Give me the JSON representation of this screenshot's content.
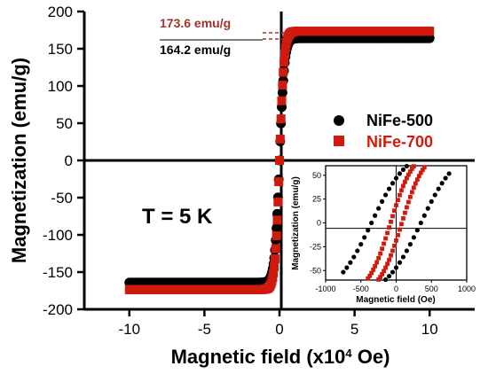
{
  "colors": {
    "nife500": "#000000",
    "nife700": "#d11a0e",
    "annot700": "#a0342c"
  },
  "chart_data": [
    {
      "type": "scatter",
      "title": "",
      "xlabel_main": "Magnetic field (x10",
      "xlabel_sup": "4",
      "xlabel_tail": " Oe)",
      "ylabel": "Magnetization (emu/g)",
      "xlim": [
        -13,
        13
      ],
      "ylim": [
        -200,
        200
      ],
      "x_ticks": [
        -10,
        -5,
        0,
        5,
        10
      ],
      "y_ticks": [
        -200,
        -150,
        -100,
        -50,
        0,
        50,
        100,
        150,
        200
      ],
      "grid": false,
      "legend_position": "right",
      "series": [
        {
          "name": "NiFe-500",
          "marker": "circle",
          "Ms": 164.2,
          "x_range": [
            -10,
            10
          ]
        },
        {
          "name": "NiFe-700",
          "marker": "square",
          "Ms": 173.6,
          "x_range": [
            -10,
            10
          ]
        }
      ],
      "annotations": {
        "ms_700": "173.6 emu/g",
        "ms_500": "164.2 emu/g",
        "temperature": "T = 5 K"
      }
    },
    {
      "type": "scatter",
      "title": "",
      "xlabel": "Magnetic field (Oe)",
      "ylabel": "Magnetization (emu/g)",
      "xlim": [
        -1000,
        1000
      ],
      "ylim": [
        -60,
        60
      ],
      "x_ticks": [
        -1000,
        -500,
        0,
        500,
        1000
      ],
      "y_ticks": [
        -50,
        -25,
        0,
        25,
        50
      ],
      "series": [
        {
          "name": "NiFe-500",
          "coercivity_oe": 350,
          "x_range": [
            -750,
            750
          ]
        },
        {
          "name": "NiFe-700",
          "coercivity_oe": 80,
          "x_range": [
            -500,
            500
          ]
        }
      ]
    }
  ]
}
